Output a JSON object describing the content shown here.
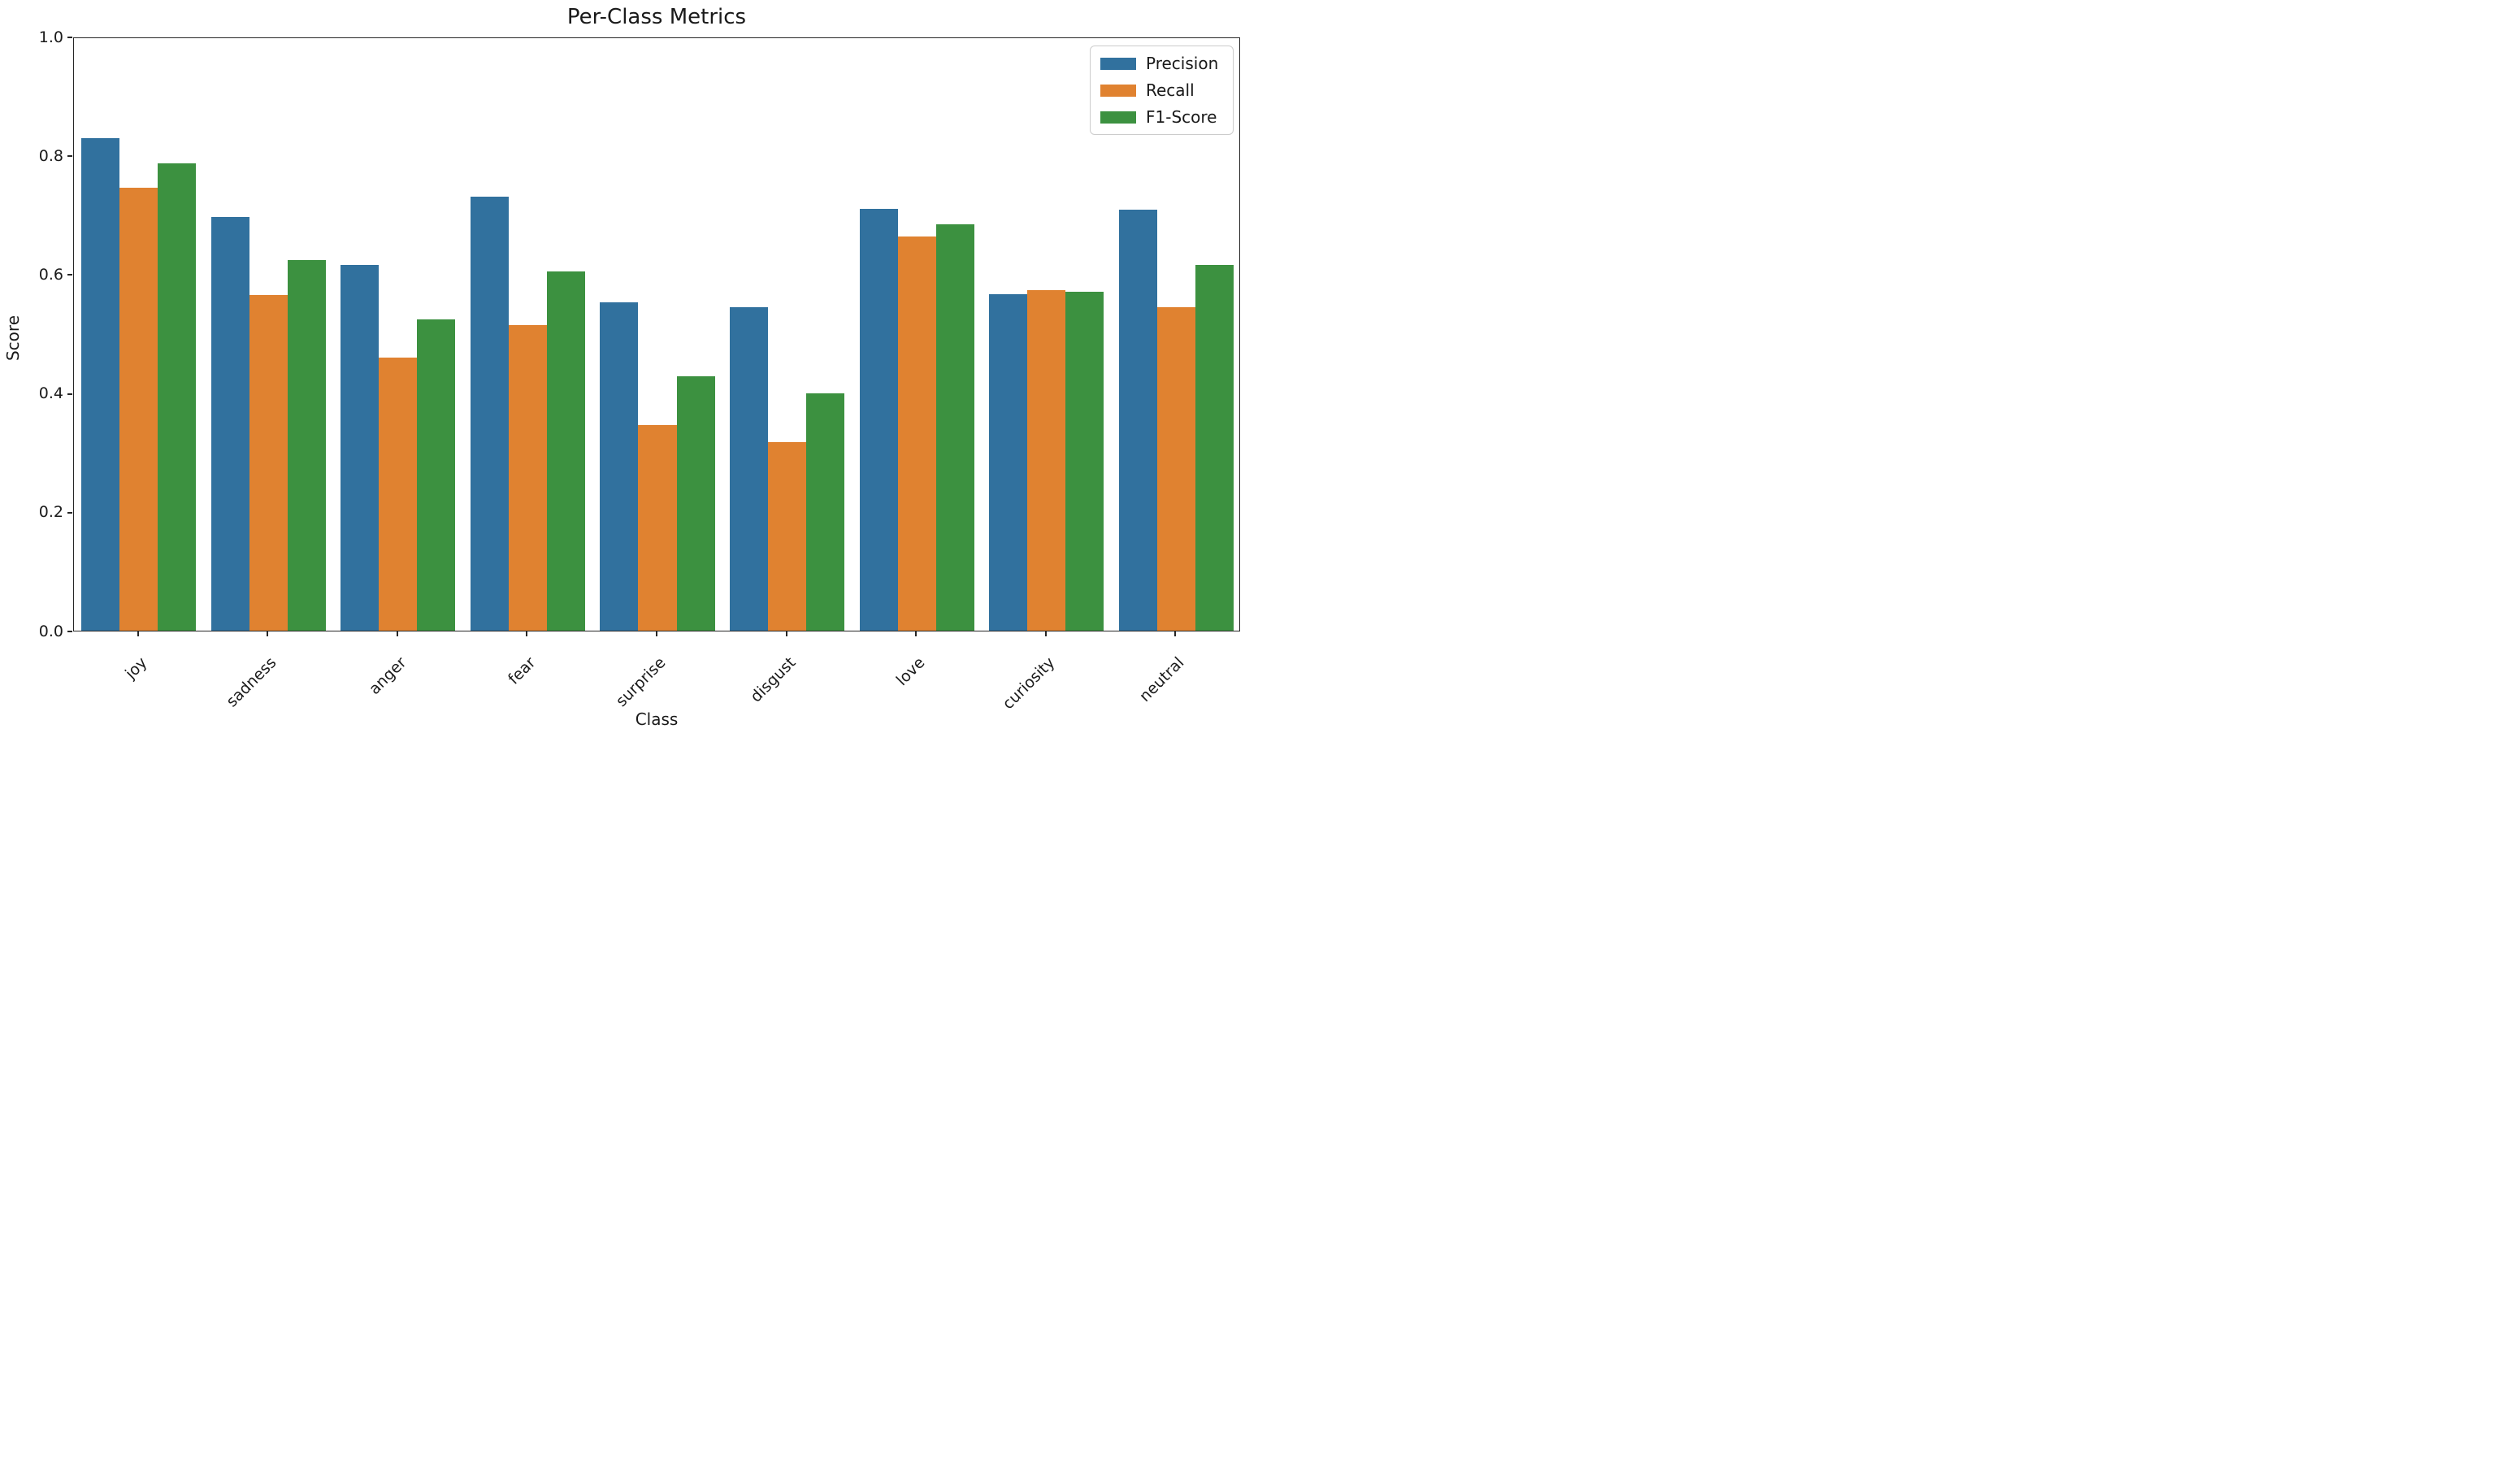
{
  "figure": {
    "background_color": "#ffffff",
    "axis_color": "#262626",
    "text_color": "#1a1a1a"
  },
  "chart_data": {
    "type": "bar",
    "title": "Per-Class Metrics",
    "xlabel": "Class",
    "ylabel": "Score",
    "ylim": [
      0,
      1
    ],
    "yticks": [
      "0.0",
      "0.2",
      "0.4",
      "0.6",
      "0.8",
      "1.0"
    ],
    "grid": false,
    "legend_position": "upper right",
    "xtick_rotation_deg": 45,
    "categories": [
      "joy",
      "sadness",
      "anger",
      "fear",
      "surprise",
      "disgust",
      "love",
      "curiosity",
      "neutral"
    ],
    "series": [
      {
        "name": "Precision",
        "color": "#31719E",
        "values": [
          0.829,
          0.696,
          0.616,
          0.731,
          0.553,
          0.545,
          0.71,
          0.567,
          0.708
        ]
      },
      {
        "name": "Recall",
        "color": "#E08230",
        "values": [
          0.746,
          0.565,
          0.459,
          0.515,
          0.346,
          0.317,
          0.663,
          0.573,
          0.545
        ]
      },
      {
        "name": "F1-Score",
        "color": "#3C9140",
        "values": [
          0.786,
          0.624,
          0.524,
          0.604,
          0.428,
          0.4,
          0.684,
          0.57,
          0.615
        ]
      }
    ]
  }
}
